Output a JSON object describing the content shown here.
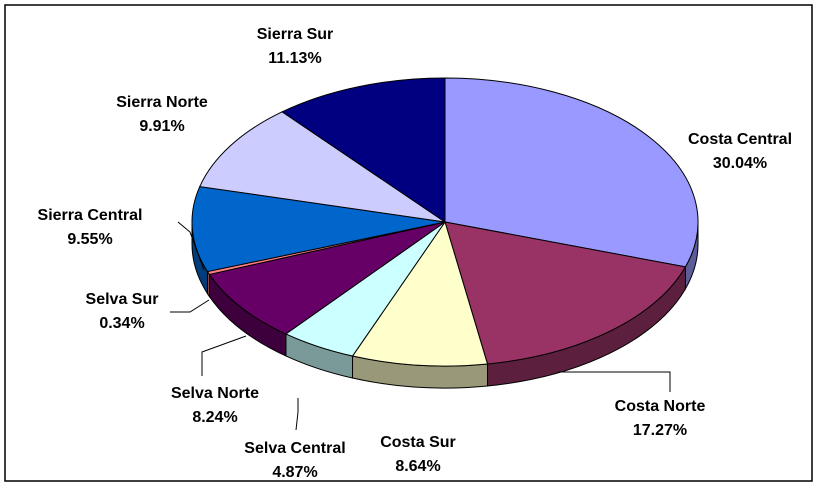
{
  "chart_data": {
    "type": "pie",
    "categories": [
      "Costa Central",
      "Costa Norte",
      "Costa Sur",
      "Selva Central",
      "Selva Norte",
      "Selva Sur",
      "Sierra Central",
      "Sierra Norte",
      "Sierra Sur"
    ],
    "values": [
      30.04,
      17.27,
      8.64,
      4.87,
      8.24,
      0.34,
      9.55,
      9.91,
      11.13
    ],
    "value_labels": [
      "30.04%",
      "17.27%",
      "8.64%",
      "4.87%",
      "8.24%",
      "0.34%",
      "9.55%",
      "9.91%",
      "11.13%"
    ],
    "colors": [
      "#9999ff",
      "#993366",
      "#ffffcc",
      "#ccffff",
      "#660066",
      "#ff8080",
      "#0066cc",
      "#ccccff",
      "#000080"
    ]
  }
}
